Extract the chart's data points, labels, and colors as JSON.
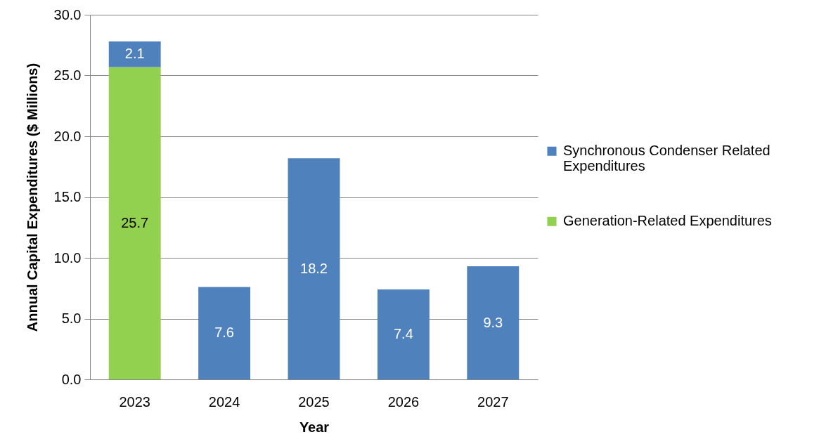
{
  "chart_data": {
    "type": "bar",
    "stacked": true,
    "categories": [
      "2023",
      "2024",
      "2025",
      "2026",
      "2027"
    ],
    "series": [
      {
        "name": "Generation-Related Expenditures",
        "color": "#92d050",
        "values": [
          25.7,
          null,
          null,
          null,
          null
        ]
      },
      {
        "name": "Synchronous Condenser Related Expenditures",
        "color": "#4f81bd",
        "values": [
          2.1,
          7.6,
          18.2,
          7.4,
          9.3
        ]
      }
    ],
    "xlabel": "Year",
    "ylabel": "Annual Capital Expenditures ($ Millions)",
    "ylim": [
      0,
      30
    ],
    "yticks": [
      {
        "value": 0,
        "label": "0.0"
      },
      {
        "value": 5,
        "label": "5.0"
      },
      {
        "value": 10,
        "label": "10.0"
      },
      {
        "value": 15,
        "label": "15.0"
      },
      {
        "value": 20,
        "label": "20.0"
      },
      {
        "value": 25,
        "label": "25.0"
      },
      {
        "value": 30,
        "label": "30.0"
      }
    ],
    "grid": "y",
    "legend": "right",
    "data_labels": true
  }
}
